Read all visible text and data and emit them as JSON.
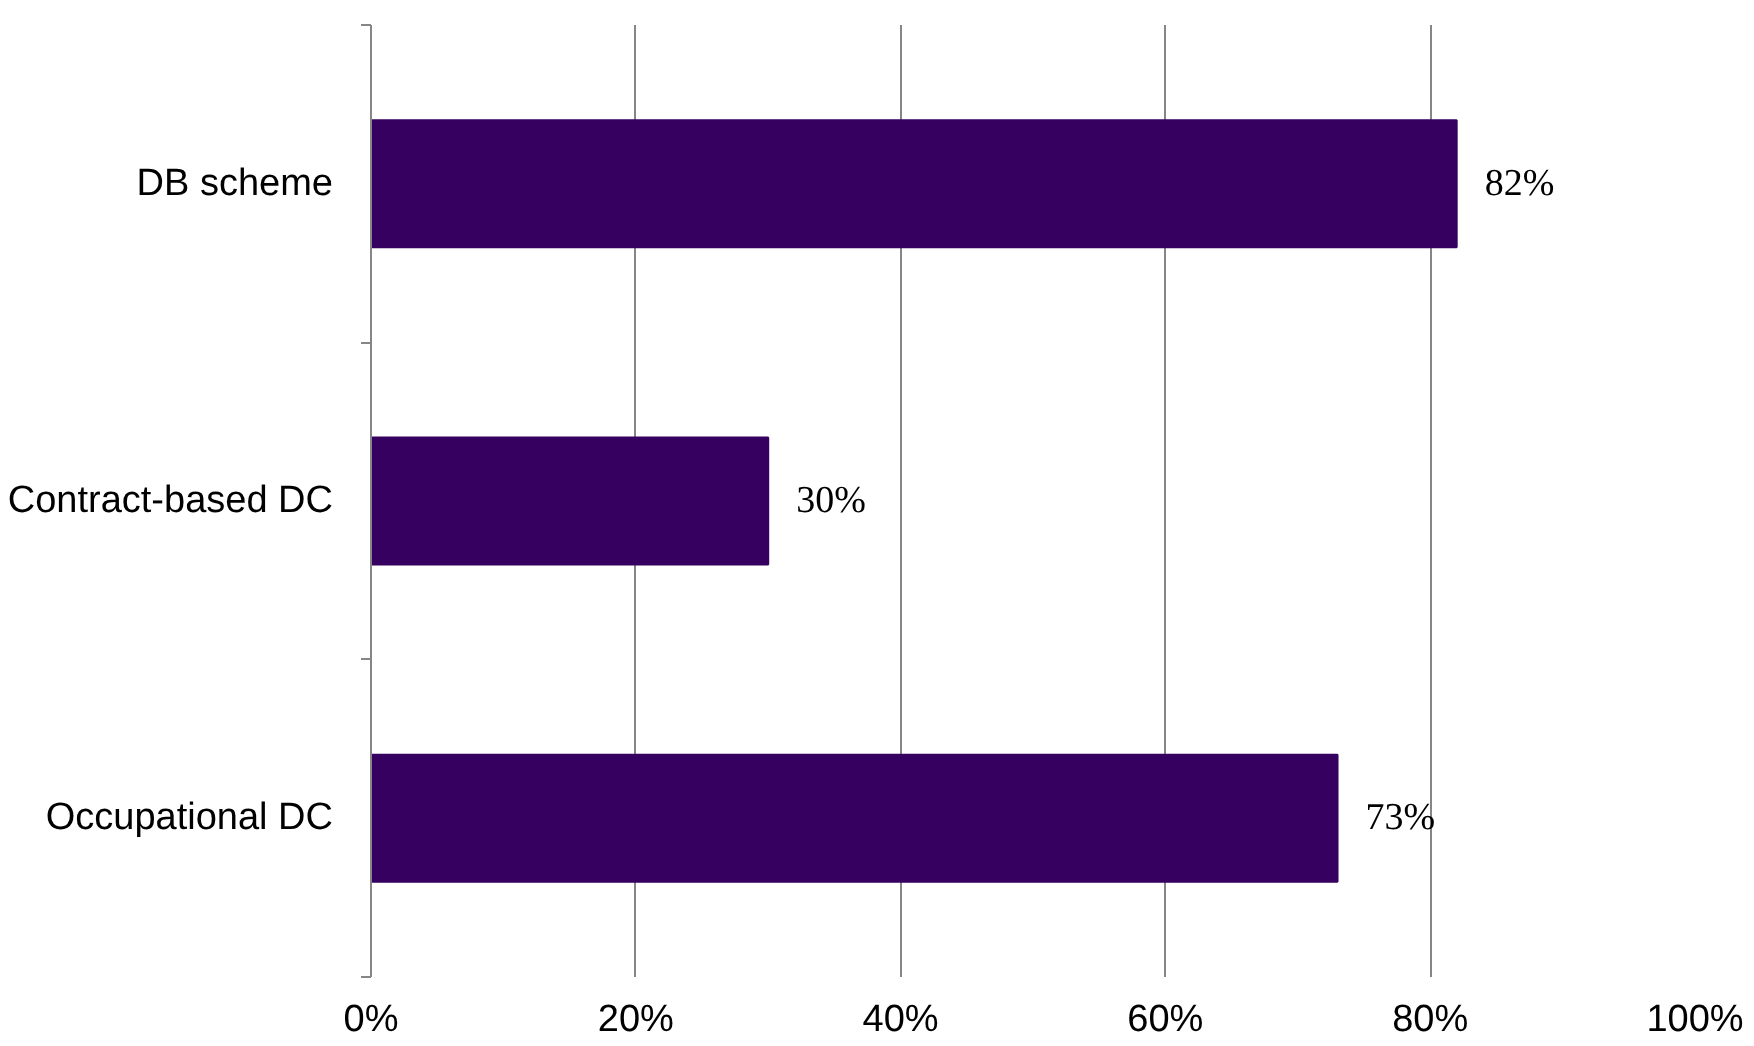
{
  "chart_data": {
    "type": "bar",
    "orientation": "horizontal",
    "categories": [
      "DB scheme",
      "Contract-based DC",
      "Occupational DC"
    ],
    "values": [
      82,
      30,
      73
    ],
    "color": "#360060",
    "value_labels": [
      "82%",
      "30%",
      "73%"
    ],
    "xlim": [
      0,
      100
    ],
    "xticks": [
      {
        "value": 0,
        "label": "0%"
      },
      {
        "value": 20,
        "label": "20%"
      },
      {
        "value": 40,
        "label": "40%"
      },
      {
        "value": 60,
        "label": "60%"
      },
      {
        "value": 80,
        "label": "80%"
      },
      {
        "value": 100,
        "label": "100%"
      }
    ],
    "grid": "x"
  }
}
